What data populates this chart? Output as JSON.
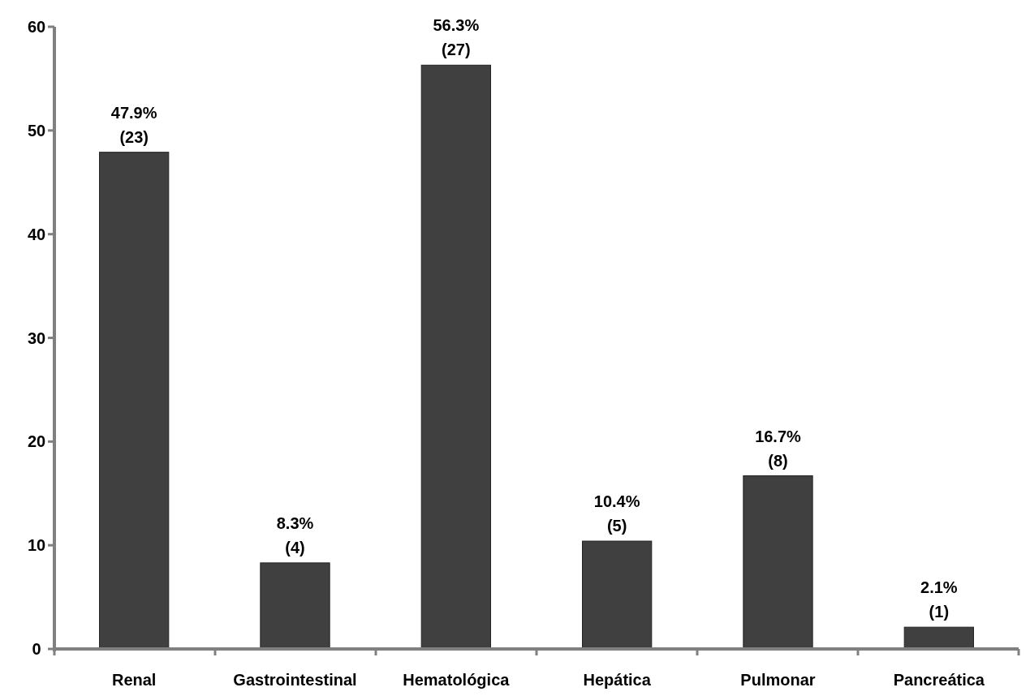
{
  "chart_data": {
    "type": "bar",
    "categories": [
      "Renal",
      "Gastrointestinal",
      "Hematológica",
      "Hepática",
      "Pulmonar",
      "Pancreática"
    ],
    "values": [
      47.9,
      8.3,
      56.3,
      10.4,
      16.7,
      2.1
    ],
    "value_labels": [
      "47.9%\n(23)",
      "8.3%\n(4)",
      "56.3%\n(27)",
      "10.4%\n(5)",
      "16.7%\n(8)",
      "2.1%\n(1)"
    ],
    "color": "#404040",
    "ylim": [
      0,
      60
    ],
    "yticks": [
      0,
      10,
      20,
      30,
      40,
      50,
      60
    ],
    "grid": false
  }
}
